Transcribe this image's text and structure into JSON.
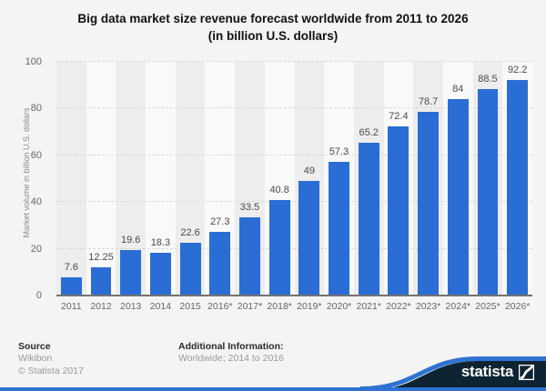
{
  "title": {
    "line1": "Big data market size revenue forecast worldwide from 2011 to 2026",
    "line2": "(in billion U.S. dollars)"
  },
  "chart_data": {
    "type": "bar",
    "title": "Big data market size revenue forecast worldwide from 2011 to 2026 (in billion U.S. dollars)",
    "categories": [
      "2011",
      "2012",
      "2013",
      "2014",
      "2015",
      "2016*",
      "2017*",
      "2018*",
      "2019*",
      "2020*",
      "2021*",
      "2022*",
      "2023*",
      "2024*",
      "2025*",
      "2026*"
    ],
    "values": [
      7.6,
      12.25,
      19.6,
      18.3,
      22.6,
      27.3,
      33.5,
      40.8,
      49,
      57.3,
      65.2,
      72.4,
      78.7,
      84,
      88.5,
      92.2
    ],
    "xlabel": "",
    "ylabel": "Market volume in billion U.S. dollars",
    "ylim": [
      0,
      100
    ],
    "yticks": [
      0,
      20,
      40,
      60,
      80,
      100
    ],
    "grid": true,
    "legend": false,
    "bar_color": "#2a6dd4"
  },
  "footer": {
    "source_label": "Source",
    "source_line1": "Wikibon",
    "source_line2": "© Statista 2017",
    "additional_label": "Additional Information:",
    "additional_value": "Worldwide; 2014 to 2016"
  },
  "brand": {
    "name": "statista",
    "navy": "#0e2433",
    "accent_blue": "#2e72d2"
  }
}
